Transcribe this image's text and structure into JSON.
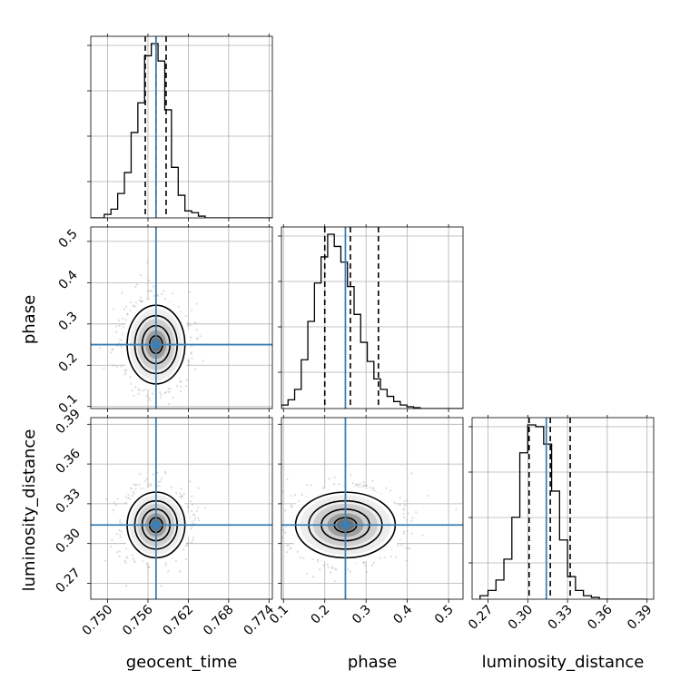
{
  "chart_data": {
    "type": "corner",
    "parameters": [
      "geocent_time",
      "phase",
      "luminosity_distance"
    ],
    "truth_color": "#3b7fb5",
    "axes": {
      "geocent_time": {
        "range": [
          0.7475,
          0.7745
        ],
        "ticks": [
          0.75,
          0.756,
          0.762,
          0.768,
          0.774
        ],
        "tick_labels": [
          "0.750",
          "0.756",
          "0.762",
          "0.768",
          "0.774"
        ]
      },
      "phase": {
        "range": [
          0.095,
          0.535
        ],
        "ticks": [
          0.1,
          0.2,
          0.3,
          0.4,
          0.5
        ],
        "tick_labels": [
          "0.1",
          "0.2",
          "0.3",
          "0.4",
          "0.5"
        ]
      },
      "luminosity_distance": {
        "range": [
          0.258,
          0.395
        ],
        "ticks": [
          0.27,
          0.3,
          0.33,
          0.36,
          0.39
        ],
        "tick_labels": [
          "0.27",
          "0.30",
          "0.33",
          "0.36",
          "0.39"
        ]
      }
    },
    "truths": {
      "geocent_time": 0.7572,
      "phase": 0.25,
      "luminosity_distance": 0.314
    },
    "quantiles": {
      "geocent_time": [
        0.7556,
        0.7572,
        0.7587
      ],
      "phase": [
        0.2,
        0.262,
        0.33
      ],
      "luminosity_distance": [
        0.301,
        0.317,
        0.332
      ]
    },
    "histograms": {
      "geocent_time": {
        "edges": [
          0.7475,
          0.7485,
          0.7495,
          0.7505,
          0.7515,
          0.7525,
          0.7535,
          0.7545,
          0.7555,
          0.7565,
          0.7575,
          0.7585,
          0.7595,
          0.7605,
          0.7615,
          0.7625,
          0.7635,
          0.7645,
          0.7655,
          0.7665,
          0.7675,
          0.7685,
          0.7695,
          0.7705,
          0.7715,
          0.7725,
          0.7735,
          0.7745
        ],
        "counts": [
          0,
          0,
          0.02,
          0.05,
          0.14,
          0.26,
          0.49,
          0.66,
          0.93,
          1.0,
          0.9,
          0.62,
          0.29,
          0.13,
          0.04,
          0.03,
          0.01,
          0,
          0,
          0,
          0,
          0,
          0,
          0,
          0,
          0,
          0
        ]
      },
      "phase": {
        "edges": [
          0.095,
          0.111,
          0.127,
          0.143,
          0.159,
          0.175,
          0.191,
          0.207,
          0.223,
          0.239,
          0.255,
          0.271,
          0.287,
          0.303,
          0.319,
          0.335,
          0.351,
          0.367,
          0.383,
          0.399,
          0.415,
          0.431,
          0.447,
          0.463,
          0.479,
          0.495,
          0.511,
          0.535
        ],
        "counts": [
          0.02,
          0.05,
          0.11,
          0.28,
          0.5,
          0.72,
          0.87,
          1.0,
          0.93,
          0.84,
          0.7,
          0.54,
          0.38,
          0.27,
          0.17,
          0.11,
          0.07,
          0.04,
          0.02,
          0.01,
          0.005,
          0,
          0,
          0,
          0,
          0,
          0
        ]
      },
      "luminosity_distance": {
        "edges": [
          0.264,
          0.27,
          0.276,
          0.282,
          0.288,
          0.294,
          0.3,
          0.306,
          0.312,
          0.318,
          0.324,
          0.33,
          0.336,
          0.342,
          0.348,
          0.354,
          0.36,
          0.366,
          0.372,
          0.378,
          0.384,
          0.39
        ],
        "counts": [
          0.02,
          0.05,
          0.11,
          0.23,
          0.47,
          0.84,
          1.0,
          0.99,
          0.89,
          0.62,
          0.34,
          0.13,
          0.05,
          0.02,
          0.01,
          0,
          0,
          0,
          0,
          0,
          0
        ]
      }
    },
    "grid": true
  }
}
